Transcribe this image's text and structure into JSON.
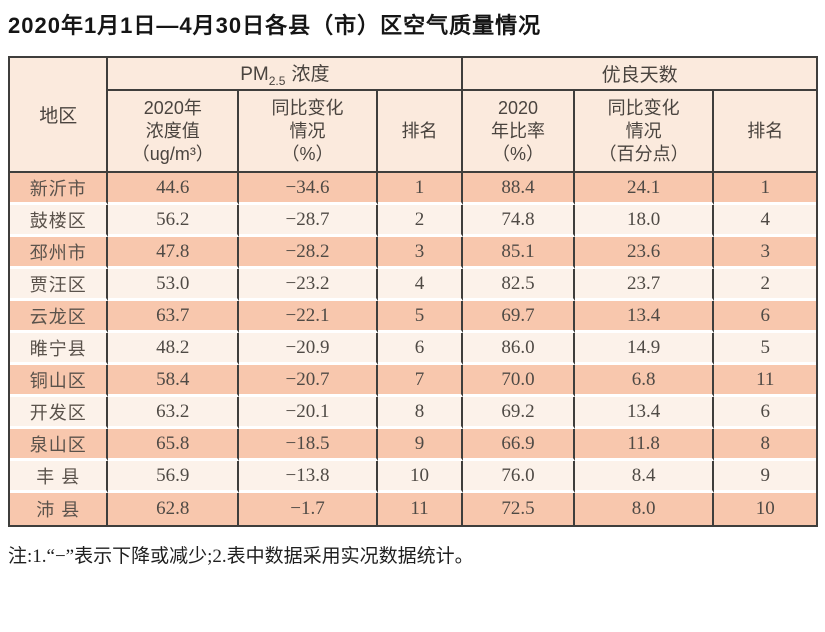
{
  "title": "2020年1月1日—4月30日各县（市）区空气质量情况",
  "colors": {
    "border": "#3f3e3c",
    "row_shade": "#f8c7ad",
    "row_light": "#fcf2ea",
    "header_bg": "#fbeadd",
    "text": "#4f4a45"
  },
  "table": {
    "group_headers": {
      "region": "地区",
      "pm25": {
        "prefix": "PM",
        "sub": "2.5",
        "suffix": "浓度"
      },
      "good_days": "优良天数"
    },
    "sub_headers": {
      "pm_value": {
        "l1": "2020年",
        "l2": "浓度值",
        "l3": "（ug/m³）"
      },
      "pm_change": {
        "l1": "同比变化",
        "l2": "情况",
        "l3": "（%）"
      },
      "pm_rank": "排名",
      "ratio": {
        "l1": "2020",
        "l2": "年比率",
        "l3": "（%）"
      },
      "ratio_change": {
        "l1": "同比变化",
        "l2": "情况",
        "l3": "（百分点）"
      },
      "ratio_rank": "排名"
    },
    "rows": [
      {
        "region": "新沂市",
        "pm_value": "44.6",
        "pm_change": "−34.6",
        "pm_rank": "1",
        "ratio": "88.4",
        "ratio_change": "24.1",
        "ratio_rank": "1"
      },
      {
        "region": "鼓楼区",
        "pm_value": "56.2",
        "pm_change": "−28.7",
        "pm_rank": "2",
        "ratio": "74.8",
        "ratio_change": "18.0",
        "ratio_rank": "4"
      },
      {
        "region": "邳州市",
        "pm_value": "47.8",
        "pm_change": "−28.2",
        "pm_rank": "3",
        "ratio": "85.1",
        "ratio_change": "23.6",
        "ratio_rank": "3"
      },
      {
        "region": "贾汪区",
        "pm_value": "53.0",
        "pm_change": "−23.2",
        "pm_rank": "4",
        "ratio": "82.5",
        "ratio_change": "23.7",
        "ratio_rank": "2"
      },
      {
        "region": "云龙区",
        "pm_value": "63.7",
        "pm_change": "−22.1",
        "pm_rank": "5",
        "ratio": "69.7",
        "ratio_change": "13.4",
        "ratio_rank": "6"
      },
      {
        "region": "睢宁县",
        "pm_value": "48.2",
        "pm_change": "−20.9",
        "pm_rank": "6",
        "ratio": "86.0",
        "ratio_change": "14.9",
        "ratio_rank": "5"
      },
      {
        "region": "铜山区",
        "pm_value": "58.4",
        "pm_change": "−20.7",
        "pm_rank": "7",
        "ratio": "70.0",
        "ratio_change": "6.8",
        "ratio_rank": "11"
      },
      {
        "region": "开发区",
        "pm_value": "63.2",
        "pm_change": "−20.1",
        "pm_rank": "8",
        "ratio": "69.2",
        "ratio_change": "13.4",
        "ratio_rank": "6"
      },
      {
        "region": "泉山区",
        "pm_value": "65.8",
        "pm_change": "−18.5",
        "pm_rank": "9",
        "ratio": "66.9",
        "ratio_change": "11.8",
        "ratio_rank": "8"
      },
      {
        "region": "丰 县",
        "pm_value": "56.9",
        "pm_change": "−13.8",
        "pm_rank": "10",
        "ratio": "76.0",
        "ratio_change": "8.4",
        "ratio_rank": "9"
      },
      {
        "region": "沛 县",
        "pm_value": "62.8",
        "pm_change": "−1.7",
        "pm_rank": "11",
        "ratio": "72.5",
        "ratio_change": "8.0",
        "ratio_rank": "10"
      }
    ],
    "note": "注:1.“−”表示下降或减少;2.表中数据采用实况数据统计。"
  }
}
